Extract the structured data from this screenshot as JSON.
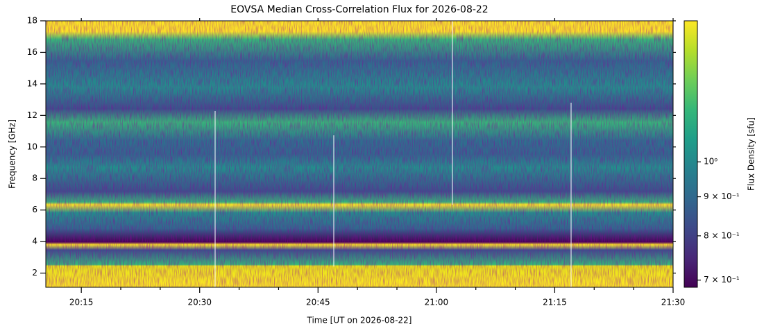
{
  "chart_data": {
    "type": "spectrogram",
    "title": "EOVSA Median Cross-Correlation Flux for 2026-08-22",
    "x_label": "Time [UT on 2026-08-22]",
    "y_label": "Frequency [GHz]",
    "colorbar_label": "Flux Density [sfu]",
    "colormap": "viridis",
    "xlim": [
      "20:10:30",
      "21:30"
    ],
    "xticks": [
      "20:15",
      "20:30",
      "20:45",
      "21:00",
      "21:15",
      "21:30"
    ],
    "xminorticks": [
      "20:20",
      "20:25",
      "20:35",
      "20:40",
      "20:50",
      "20:55",
      "21:05",
      "21:10",
      "21:20",
      "21:25"
    ],
    "ylim": [
      1.1,
      18
    ],
    "yticks": [
      2,
      4,
      6,
      8,
      10,
      12,
      14,
      16,
      18
    ],
    "clim": [
      0.685,
      1.53
    ],
    "clog": true,
    "cticks": [
      {
        "value": 0.7,
        "label": "7 × 10⁻¹"
      },
      {
        "value": 0.8,
        "label": "8 × 10⁻¹"
      },
      {
        "value": 0.9,
        "label": "9 × 10⁻¹"
      },
      {
        "value": 1,
        "label": "10⁰"
      }
    ]
  }
}
